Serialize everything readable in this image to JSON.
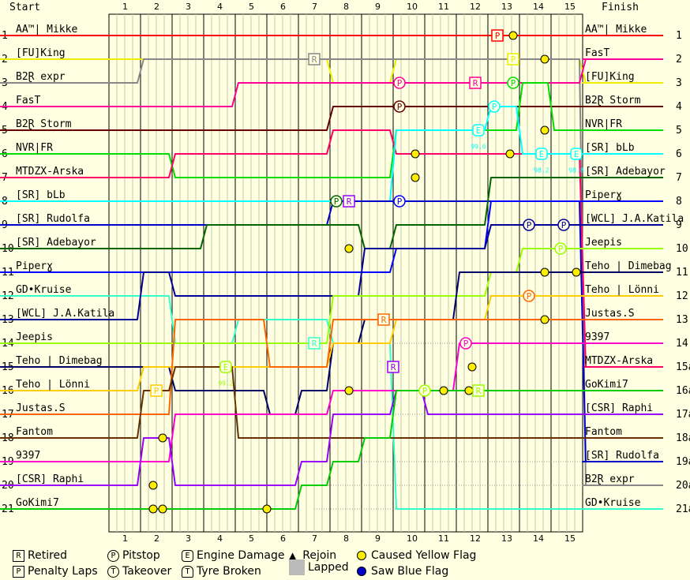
{
  "header": {
    "start": "Start",
    "finish": "Finish"
  },
  "chart_data": {
    "type": "line",
    "laps": [
      "1",
      "2",
      "3",
      "4",
      "5",
      "6",
      "7",
      "8",
      "9",
      "10",
      "11",
      "12",
      "13",
      "14",
      "15"
    ],
    "positions": [
      "1",
      "2",
      "3",
      "4",
      "5",
      "6",
      "7",
      "8",
      "9",
      "10",
      "11",
      "12",
      "13",
      "14",
      "15",
      "16",
      "17",
      "18",
      "19",
      "20",
      "21"
    ],
    "finish_positions": [
      "1",
      "2",
      "3",
      "4",
      "5",
      "6",
      "7",
      "8",
      "9",
      "10",
      "11",
      "12",
      "13",
      "14",
      "15a",
      "16a",
      "17a",
      "18a",
      "19a",
      "20a",
      "21a"
    ],
    "start_order": [
      "AA™| Mikke",
      "[FU]King",
      "B2Ɽ expr",
      "FasT",
      "B2Ɽ Storm",
      "NVR|FR",
      "MTDZX-Arska",
      "[SR] bLb",
      "[SR] Rudolfa",
      "[SR] Adebayor",
      "Piperɣ",
      "GD•Kruise",
      "[WCL] J.A.Katila",
      "Jeepis",
      "Teho | Dimebag",
      "Teho | Lönni",
      "Justas.S",
      "Fantom",
      "9397",
      "[CSR] Raphi",
      "GoKimi7"
    ],
    "finish_order": [
      "AA™| Mikke",
      "FasT",
      "[FU]King",
      "B2Ɽ Storm",
      "NVR|FR",
      "[SR] bLb",
      "[SR] Adebayor",
      "Piperɣ",
      "[WCL] J.A.Katila",
      "Jeepis",
      "Teho | Dimebag",
      "Teho | Lönni",
      "Justas.S",
      "9397",
      "MTDZX-Arska",
      "GoKimi7",
      "[CSR] Raphi",
      "Fantom",
      "[SR] Rudolfa",
      "B2Ɽ expr",
      "GD•Kruise"
    ],
    "series": [
      {
        "name": "AA™| Mikke",
        "color": "#FF0000",
        "positions": [
          1,
          1,
          1,
          1,
          1,
          1,
          1,
          1,
          1,
          1,
          1,
          1,
          1,
          1,
          1,
          1
        ]
      },
      {
        "name": "[FU]King",
        "color": "#EEEE00",
        "positions": [
          2,
          2,
          2,
          2,
          2,
          2,
          2,
          3,
          3,
          2,
          2,
          2,
          2,
          2,
          2,
          3
        ]
      },
      {
        "name": "B2Ɽ expr",
        "color": "#888888",
        "positions": [
          3,
          2,
          2,
          2,
          2,
          2,
          2,
          2,
          2,
          2,
          2,
          2,
          2,
          2,
          2,
          20
        ]
      },
      {
        "name": "FasT",
        "color": "#FF0099",
        "positions": [
          4,
          4,
          4,
          4,
          3,
          3,
          3,
          3,
          3,
          3,
          3,
          3,
          3,
          3,
          3,
          2
        ]
      },
      {
        "name": "B2Ɽ Storm",
        "color": "#660000",
        "positions": [
          5,
          5,
          5,
          5,
          5,
          5,
          5,
          4,
          4,
          4,
          4,
          4,
          4,
          4,
          4,
          4
        ]
      },
      {
        "name": "NVR|FR",
        "color": "#00DD00",
        "positions": [
          6,
          6,
          7,
          7,
          7,
          7,
          7,
          7,
          7,
          5,
          5,
          5,
          5,
          3,
          5,
          5
        ]
      },
      {
        "name": "MTDZX-Arska",
        "color": "#FF0066",
        "positions": [
          7,
          7,
          6,
          6,
          6,
          6,
          6,
          5,
          5,
          6,
          6,
          6,
          6,
          6,
          6,
          15
        ]
      },
      {
        "name": "[SR] bLb",
        "color": "#00FFFF",
        "positions": [
          8,
          8,
          8,
          8,
          8,
          8,
          8,
          8,
          8,
          5,
          5,
          5,
          4,
          6,
          6,
          6
        ]
      },
      {
        "name": "[SR] Rudolfa",
        "color": "#0000CC",
        "positions": [
          9,
          9,
          9,
          9,
          9,
          9,
          9,
          8,
          8,
          8,
          8,
          8,
          8,
          8,
          8,
          19
        ]
      },
      {
        "name": "[SR] Adebayor",
        "color": "#006600",
        "positions": [
          10,
          10,
          10,
          9,
          9,
          9,
          9,
          9,
          10,
          9,
          9,
          9,
          7,
          7,
          7,
          7
        ]
      },
      {
        "name": "Piperɣ",
        "color": "#0000FF",
        "positions": [
          11,
          11,
          11,
          11,
          11,
          11,
          11,
          11,
          11,
          10,
          10,
          10,
          8,
          8,
          8,
          8
        ]
      },
      {
        "name": "GD•Kruise",
        "color": "#33FFCC",
        "positions": [
          12,
          12,
          14,
          14,
          13,
          13,
          13,
          14,
          14,
          21,
          21,
          21,
          21,
          21,
          21,
          21
        ]
      },
      {
        "name": "[WCL] J.A.Katila",
        "color": "#000099",
        "positions": [
          13,
          11,
          12,
          12,
          12,
          12,
          12,
          12,
          10,
          10,
          10,
          10,
          9,
          9,
          9,
          9
        ]
      },
      {
        "name": "Jeepis",
        "color": "#99FF00",
        "positions": [
          14,
          14,
          14,
          14,
          14,
          14,
          14,
          12,
          12,
          12,
          12,
          12,
          11,
          10,
          10,
          10
        ]
      },
      {
        "name": "Teho | Dimebag",
        "color": "#000066",
        "positions": [
          15,
          15,
          16,
          16,
          16,
          17,
          16,
          14,
          13,
          13,
          13,
          11,
          11,
          11,
          11,
          11
        ]
      },
      {
        "name": "Teho | Lönni",
        "color": "#FFCC00",
        "positions": [
          16,
          15,
          15,
          15,
          15,
          15,
          15,
          14,
          14,
          13,
          13,
          13,
          12,
          12,
          12,
          12
        ]
      },
      {
        "name": "Justas.S",
        "color": "#FF6600",
        "positions": [
          17,
          17,
          13,
          13,
          13,
          15,
          15,
          13,
          13,
          13,
          13,
          13,
          13,
          13,
          13,
          13
        ]
      },
      {
        "name": "Fantom",
        "color": "#663300",
        "positions": [
          18,
          16,
          15,
          15,
          18,
          18,
          18,
          18,
          18,
          18,
          18,
          18,
          18,
          18,
          18,
          18
        ]
      },
      {
        "name": "9397",
        "color": "#FF00CC",
        "positions": [
          19,
          19,
          17,
          17,
          17,
          17,
          17,
          16,
          16,
          16,
          16,
          14,
          14,
          14,
          14,
          14
        ]
      },
      {
        "name": "[CSR] Raphi",
        "color": "#9900FF",
        "positions": [
          20,
          18,
          20,
          20,
          20,
          20,
          19,
          17,
          17,
          16,
          17,
          17,
          17,
          17,
          17,
          17
        ]
      },
      {
        "name": "GoKimi7",
        "color": "#00CC00",
        "positions": [
          21,
          21,
          21,
          21,
          21,
          21,
          20,
          19,
          18,
          16,
          16,
          16,
          16,
          16,
          16,
          16
        ]
      }
    ],
    "events": [
      {
        "type": "penalty",
        "color": "#FF0000",
        "lap": 12.3,
        "pos": 1
      },
      {
        "type": "yellow",
        "lap": 12.8,
        "pos": 1
      },
      {
        "type": "retired",
        "color": "#888888",
        "lap": 6.5,
        "pos": 2
      },
      {
        "type": "penalty",
        "color": "#EEEE00",
        "lap": 12.8,
        "pos": 2
      },
      {
        "type": "yellow",
        "lap": 13.8,
        "pos": 2
      },
      {
        "type": "pitstop",
        "color": "#FF0099",
        "lap": 9.2,
        "pos": 3
      },
      {
        "type": "retired",
        "color": "#FF0099",
        "lap": 11.6,
        "pos": 3
      },
      {
        "type": "pitstop",
        "color": "#00DD00",
        "lap": 12.8,
        "pos": 3
      },
      {
        "type": "pitstop",
        "color": "#660000",
        "lap": 9.2,
        "pos": 4
      },
      {
        "type": "pitstop",
        "color": "#00FFFF",
        "lap": 12.2,
        "pos": 4
      },
      {
        "type": "engine",
        "color": "#00FFFF",
        "lap": 11.7,
        "pos": 5
      },
      {
        "type": "yellow",
        "lap": 13.8,
        "pos": 5
      },
      {
        "type": "yellow",
        "lap": 9.7,
        "pos": 6
      },
      {
        "type": "yellow",
        "lap": 12.7,
        "pos": 6
      },
      {
        "type": "engine",
        "color": "#00FFFF",
        "lap": 13.7,
        "pos": 6
      },
      {
        "type": "engine",
        "color": "#00FFFF",
        "lap": 14.8,
        "pos": 6
      },
      {
        "type": "yellow",
        "lap": 9.7,
        "pos": 7
      },
      {
        "type": "pitstop",
        "color": "#006600",
        "lap": 7.2,
        "pos": 8
      },
      {
        "type": "retired",
        "color": "#9900FF",
        "lap": 7.6,
        "pos": 8
      },
      {
        "type": "pitstop",
        "color": "#0000FF",
        "lap": 9.2,
        "pos": 8
      },
      {
        "type": "pitstop",
        "color": "#000099",
        "lap": 13.3,
        "pos": 9
      },
      {
        "type": "pitstop",
        "color": "#000099",
        "lap": 14.4,
        "pos": 9
      },
      {
        "type": "yellow",
        "lap": 7.6,
        "pos": 10
      },
      {
        "type": "pitstop",
        "color": "#99FF00",
        "lap": 14.3,
        "pos": 10
      },
      {
        "type": "yellow",
        "lap": 13.8,
        "pos": 11
      },
      {
        "type": "yellow",
        "lap": 14.8,
        "pos": 11
      },
      {
        "type": "pitstop",
        "color": "#FF6600",
        "lap": 13.3,
        "pos": 12
      },
      {
        "type": "retired",
        "color": "#FF6600",
        "lap": 8.7,
        "pos": 13
      },
      {
        "type": "yellow",
        "lap": 13.8,
        "pos": 13
      },
      {
        "type": "retired",
        "color": "#33FFCC",
        "lap": 6.5,
        "pos": 14
      },
      {
        "type": "pitstop",
        "color": "#FF00CC",
        "lap": 11.3,
        "pos": 14
      },
      {
        "type": "yellow",
        "lap": 11.5,
        "pos": 15
      },
      {
        "type": "engine",
        "color": "#99FF00",
        "lap": 3.7,
        "pos": 15
      },
      {
        "type": "retired",
        "color": "#9900FF",
        "lap": 9.0,
        "pos": 15
      },
      {
        "type": "penalty",
        "color": "#FFCC00",
        "lap": 1.5,
        "pos": 16
      },
      {
        "type": "yellow",
        "lap": 7.6,
        "pos": 16
      },
      {
        "type": "pitstop",
        "color": "#99FF00",
        "lap": 10.0,
        "pos": 16
      },
      {
        "type": "yellow",
        "lap": 10.6,
        "pos": 16
      },
      {
        "type": "yellow",
        "lap": 11.4,
        "pos": 16
      },
      {
        "type": "retired",
        "color": "#99FF00",
        "lap": 11.7,
        "pos": 16
      },
      {
        "type": "yellow",
        "lap": 1.7,
        "pos": 18
      },
      {
        "type": "yellow",
        "lap": 1.4,
        "pos": 20
      },
      {
        "type": "yellow",
        "lap": 1.4,
        "pos": 21
      },
      {
        "type": "yellow",
        "lap": 1.7,
        "pos": 21
      },
      {
        "type": "yellow",
        "lap": 5.0,
        "pos": 21
      }
    ],
    "event_labels": [
      {
        "text": "99.2",
        "color": "#99FF00",
        "lap": 3.7,
        "pos": 15.45
      },
      {
        "text": "99.6",
        "color": "#00FFFF",
        "lap": 11.7,
        "pos": 5.45
      },
      {
        "text": "98.2",
        "color": "#00FFFF",
        "lap": 13.7,
        "pos": 6.45
      },
      {
        "text": "98.8",
        "color": "#00FFFF",
        "lap": 14.8,
        "pos": 6.45
      }
    ],
    "lapped_from_lap": {
      "12": 6.5,
      "14": 6.5,
      "16": 7.5,
      "17": 7.5,
      "18": 7.5,
      "19": 8,
      "20": 6.5,
      "21": 6.5
    }
  },
  "legend": {
    "retired": "Retired",
    "penalty": "Penalty Laps",
    "pitstop": "Pitstop",
    "takeover": "Takeover",
    "engine": "Engine Damage",
    "tyre": "Tyre Broken",
    "rejoin": "Rejoin",
    "lapped": "Lapped",
    "yellow": "Caused Yellow Flag",
    "blue": "Saw Blue Flag",
    "sym_retired": "R",
    "sym_penalty": "P",
    "sym_pitstop": "P",
    "sym_takeover": "T",
    "sym_engine": "E",
    "sym_tyre": "T",
    "sym_rejoin": "▲"
  }
}
